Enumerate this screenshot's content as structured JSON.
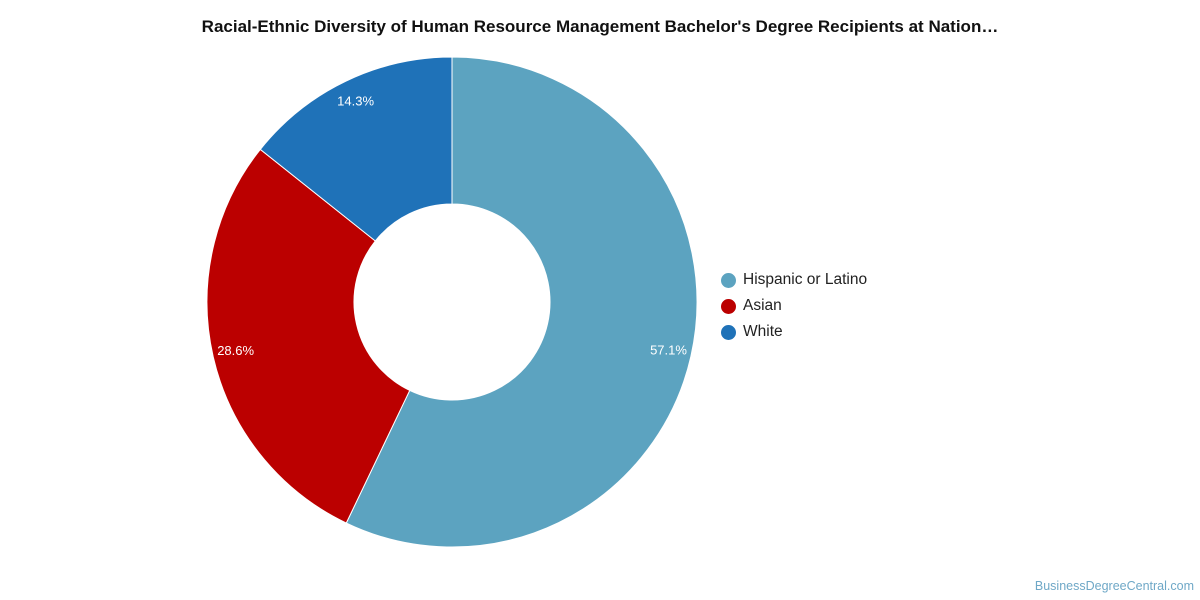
{
  "chart_data": {
    "type": "pie",
    "title": "Racial-Ethnic Diversity of Human Resource Management Bachelor's Degree Recipients at Nation…",
    "donut": true,
    "legend_position": "right",
    "slices": [
      {
        "label": "Hispanic or Latino",
        "value": 57.1,
        "value_label": "57.1%",
        "color": "#5ca3c0"
      },
      {
        "label": "Asian",
        "value": 28.6,
        "value_label": "28.6%",
        "color": "#bb0000"
      },
      {
        "label": "White",
        "value": 14.3,
        "value_label": "14.3%",
        "color": "#1f72b8"
      }
    ]
  },
  "watermark": "BusinessDegreeCentral.com"
}
